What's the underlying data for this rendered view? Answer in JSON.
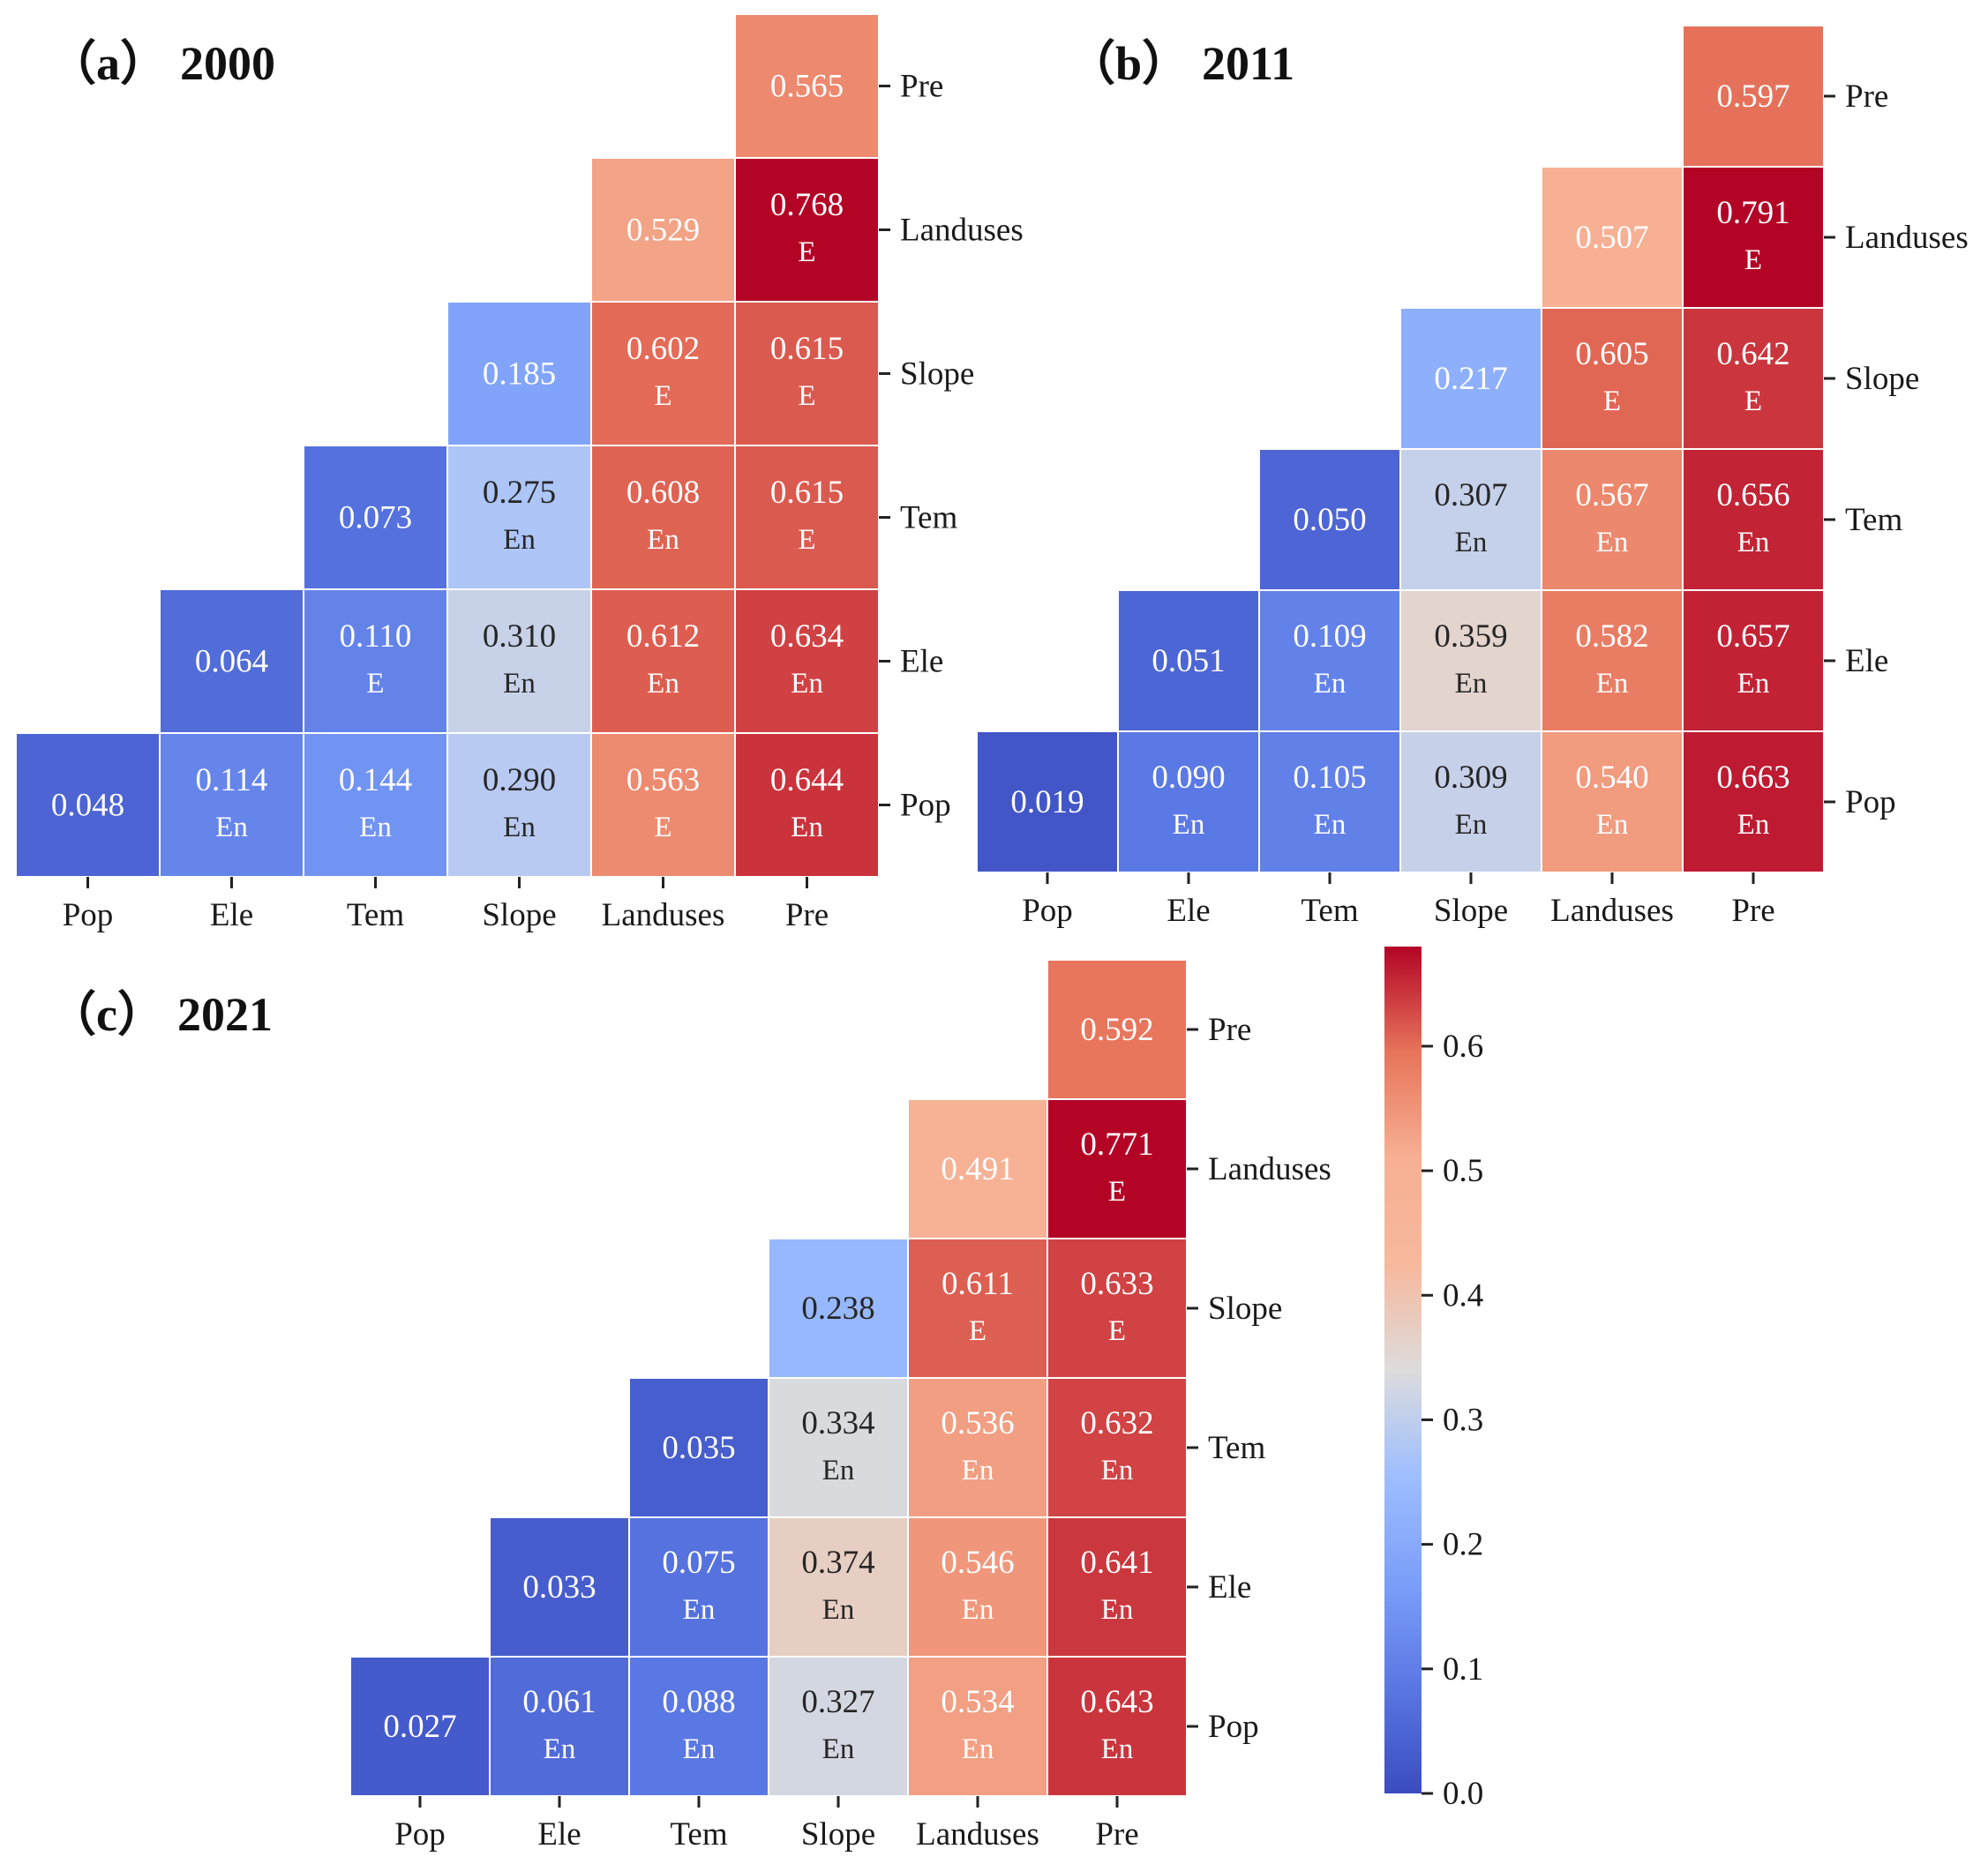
{
  "figure": {
    "panel_letters": [
      "a",
      "b",
      "c"
    ],
    "years": [
      "2000",
      "2011",
      "2021"
    ]
  },
  "chart_data": [
    {
      "type": "heatmap",
      "panel": "a",
      "title": "2000",
      "x_categories": [
        "Pop",
        "Ele",
        "Tem",
        "Slope",
        "Landuses",
        "Pre"
      ],
      "y_categories": [
        "Pre",
        "Landuses",
        "Slope",
        "Tem",
        "Ele",
        "Pop"
      ],
      "cells": [
        {
          "row": "Pre",
          "col": "Pre",
          "value": "0.565",
          "label": ""
        },
        {
          "row": "Landuses",
          "col": "Landuses",
          "value": "0.529",
          "label": ""
        },
        {
          "row": "Landuses",
          "col": "Pre",
          "value": "0.768",
          "label": "E"
        },
        {
          "row": "Slope",
          "col": "Slope",
          "value": "0.185",
          "label": ""
        },
        {
          "row": "Slope",
          "col": "Landuses",
          "value": "0.602",
          "label": "E"
        },
        {
          "row": "Slope",
          "col": "Pre",
          "value": "0.615",
          "label": "E"
        },
        {
          "row": "Tem",
          "col": "Tem",
          "value": "0.073",
          "label": ""
        },
        {
          "row": "Tem",
          "col": "Slope",
          "value": "0.275",
          "label": "En"
        },
        {
          "row": "Tem",
          "col": "Landuses",
          "value": "0.608",
          "label": "En"
        },
        {
          "row": "Tem",
          "col": "Pre",
          "value": "0.615",
          "label": "E"
        },
        {
          "row": "Ele",
          "col": "Ele",
          "value": "0.064",
          "label": ""
        },
        {
          "row": "Ele",
          "col": "Tem",
          "value": "0.110",
          "label": "E"
        },
        {
          "row": "Ele",
          "col": "Slope",
          "value": "0.310",
          "label": "En"
        },
        {
          "row": "Ele",
          "col": "Landuses",
          "value": "0.612",
          "label": "En"
        },
        {
          "row": "Ele",
          "col": "Pre",
          "value": "0.634",
          "label": "En"
        },
        {
          "row": "Pop",
          "col": "Pop",
          "value": "0.048",
          "label": ""
        },
        {
          "row": "Pop",
          "col": "Ele",
          "value": "0.114",
          "label": "En"
        },
        {
          "row": "Pop",
          "col": "Tem",
          "value": "0.144",
          "label": "En"
        },
        {
          "row": "Pop",
          "col": "Slope",
          "value": "0.290",
          "label": "En"
        },
        {
          "row": "Pop",
          "col": "Landuses",
          "value": "0.563",
          "label": "E"
        },
        {
          "row": "Pop",
          "col": "Pre",
          "value": "0.644",
          "label": "En"
        }
      ]
    },
    {
      "type": "heatmap",
      "panel": "b",
      "title": "2011",
      "x_categories": [
        "Pop",
        "Ele",
        "Tem",
        "Slope",
        "Landuses",
        "Pre"
      ],
      "y_categories": [
        "Pre",
        "Landuses",
        "Slope",
        "Tem",
        "Ele",
        "Pop"
      ],
      "cells": [
        {
          "row": "Pre",
          "col": "Pre",
          "value": "0.597",
          "label": ""
        },
        {
          "row": "Landuses",
          "col": "Landuses",
          "value": "0.507",
          "label": ""
        },
        {
          "row": "Landuses",
          "col": "Pre",
          "value": "0.791",
          "label": "E"
        },
        {
          "row": "Slope",
          "col": "Slope",
          "value": "0.217",
          "label": ""
        },
        {
          "row": "Slope",
          "col": "Landuses",
          "value": "0.605",
          "label": "E"
        },
        {
          "row": "Slope",
          "col": "Pre",
          "value": "0.642",
          "label": "E"
        },
        {
          "row": "Tem",
          "col": "Tem",
          "value": "0.050",
          "label": ""
        },
        {
          "row": "Tem",
          "col": "Slope",
          "value": "0.307",
          "label": "En"
        },
        {
          "row": "Tem",
          "col": "Landuses",
          "value": "0.567",
          "label": "En"
        },
        {
          "row": "Tem",
          "col": "Pre",
          "value": "0.656",
          "label": "En"
        },
        {
          "row": "Ele",
          "col": "Ele",
          "value": "0.051",
          "label": ""
        },
        {
          "row": "Ele",
          "col": "Tem",
          "value": "0.109",
          "label": "En"
        },
        {
          "row": "Ele",
          "col": "Slope",
          "value": "0.359",
          "label": "En"
        },
        {
          "row": "Ele",
          "col": "Landuses",
          "value": "0.582",
          "label": "En"
        },
        {
          "row": "Ele",
          "col": "Pre",
          "value": "0.657",
          "label": "En"
        },
        {
          "row": "Pop",
          "col": "Pop",
          "value": "0.019",
          "label": ""
        },
        {
          "row": "Pop",
          "col": "Ele",
          "value": "0.090",
          "label": "En"
        },
        {
          "row": "Pop",
          "col": "Tem",
          "value": "0.105",
          "label": "En"
        },
        {
          "row": "Pop",
          "col": "Slope",
          "value": "0.309",
          "label": "En"
        },
        {
          "row": "Pop",
          "col": "Landuses",
          "value": "0.540",
          "label": "En"
        },
        {
          "row": "Pop",
          "col": "Pre",
          "value": "0.663",
          "label": "En"
        }
      ]
    },
    {
      "type": "heatmap",
      "panel": "c",
      "title": "2021",
      "x_categories": [
        "Pop",
        "Ele",
        "Tem",
        "Slope",
        "Landuses",
        "Pre"
      ],
      "y_categories": [
        "Pre",
        "Landuses",
        "Slope",
        "Tem",
        "Ele",
        "Pop"
      ],
      "cells": [
        {
          "row": "Pre",
          "col": "Pre",
          "value": "0.592",
          "label": ""
        },
        {
          "row": "Landuses",
          "col": "Landuses",
          "value": "0.491",
          "label": ""
        },
        {
          "row": "Landuses",
          "col": "Pre",
          "value": "0.771",
          "label": "E"
        },
        {
          "row": "Slope",
          "col": "Slope",
          "value": "0.238",
          "label": ""
        },
        {
          "row": "Slope",
          "col": "Landuses",
          "value": "0.611",
          "label": "E"
        },
        {
          "row": "Slope",
          "col": "Pre",
          "value": "0.633",
          "label": "E"
        },
        {
          "row": "Tem",
          "col": "Tem",
          "value": "0.035",
          "label": ""
        },
        {
          "row": "Tem",
          "col": "Slope",
          "value": "0.334",
          "label": "En"
        },
        {
          "row": "Tem",
          "col": "Landuses",
          "value": "0.536",
          "label": "En"
        },
        {
          "row": "Tem",
          "col": "Pre",
          "value": "0.632",
          "label": "En"
        },
        {
          "row": "Ele",
          "col": "Ele",
          "value": "0.033",
          "label": ""
        },
        {
          "row": "Ele",
          "col": "Tem",
          "value": "0.075",
          "label": "En"
        },
        {
          "row": "Ele",
          "col": "Slope",
          "value": "0.374",
          "label": "En"
        },
        {
          "row": "Ele",
          "col": "Landuses",
          "value": "0.546",
          "label": "En"
        },
        {
          "row": "Ele",
          "col": "Pre",
          "value": "0.641",
          "label": "En"
        },
        {
          "row": "Pop",
          "col": "Pop",
          "value": "0.027",
          "label": ""
        },
        {
          "row": "Pop",
          "col": "Ele",
          "value": "0.061",
          "label": "En"
        },
        {
          "row": "Pop",
          "col": "Tem",
          "value": "0.088",
          "label": "En"
        },
        {
          "row": "Pop",
          "col": "Slope",
          "value": "0.327",
          "label": "En"
        },
        {
          "row": "Pop",
          "col": "Landuses",
          "value": "0.534",
          "label": "En"
        },
        {
          "row": "Pop",
          "col": "Pre",
          "value": "0.643",
          "label": "En"
        }
      ]
    }
  ],
  "colorbar": {
    "colormap": "coolwarm",
    "vmin": 0,
    "vmax": 0.68,
    "ticks": [
      "0.0",
      "0.1",
      "0.2",
      "0.3",
      "0.4",
      "0.5",
      "0.6"
    ]
  }
}
